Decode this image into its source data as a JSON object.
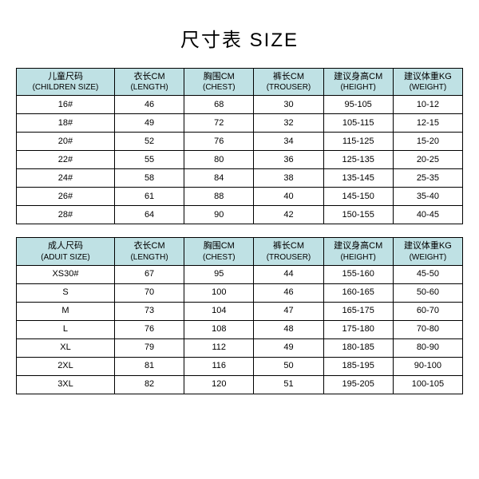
{
  "title": "尺寸表 SIZE",
  "children_table": {
    "columns": [
      {
        "cn": "儿童尺码",
        "en": "(CHILDREN SIZE)"
      },
      {
        "cn": "衣长CM",
        "en": "(LENGTH)"
      },
      {
        "cn": "胸围CM",
        "en": "(CHEST)"
      },
      {
        "cn": "裤长CM",
        "en": "(TROUSER)"
      },
      {
        "cn": "建议身高CM",
        "en": "(HEIGHT)"
      },
      {
        "cn": "建议体重KG",
        "en": "(WEIGHT)"
      }
    ],
    "rows": [
      [
        "16#",
        "46",
        "68",
        "30",
        "95-105",
        "10-12"
      ],
      [
        "18#",
        "49",
        "72",
        "32",
        "105-115",
        "12-15"
      ],
      [
        "20#",
        "52",
        "76",
        "34",
        "115-125",
        "15-20"
      ],
      [
        "22#",
        "55",
        "80",
        "36",
        "125-135",
        "20-25"
      ],
      [
        "24#",
        "58",
        "84",
        "38",
        "135-145",
        "25-35"
      ],
      [
        "26#",
        "61",
        "88",
        "40",
        "145-150",
        "35-40"
      ],
      [
        "28#",
        "64",
        "90",
        "42",
        "150-155",
        "40-45"
      ]
    ]
  },
  "adult_table": {
    "columns": [
      {
        "cn": "成人尺码",
        "en": "(ADUIT SIZE)"
      },
      {
        "cn": "衣长CM",
        "en": "(LENGTH)"
      },
      {
        "cn": "胸围CM",
        "en": "(CHEST)"
      },
      {
        "cn": "裤长CM",
        "en": "(TROUSER)"
      },
      {
        "cn": "建议身高CM",
        "en": "(HEIGHT)"
      },
      {
        "cn": "建议体重KG",
        "en": "(WEIGHT)"
      }
    ],
    "rows": [
      [
        "XS30#",
        "67",
        "95",
        "44",
        "155-160",
        "45-50"
      ],
      [
        "S",
        "70",
        "100",
        "46",
        "160-165",
        "50-60"
      ],
      [
        "M",
        "73",
        "104",
        "47",
        "165-175",
        "60-70"
      ],
      [
        "L",
        "76",
        "108",
        "48",
        "175-180",
        "70-80"
      ],
      [
        "XL",
        "79",
        "112",
        "49",
        "180-185",
        "80-90"
      ],
      [
        "2XL",
        "81",
        "116",
        "50",
        "185-195",
        "90-100"
      ],
      [
        "3XL",
        "82",
        "120",
        "51",
        "195-205",
        "100-105"
      ]
    ]
  },
  "style": {
    "header_bg": "#bfe1e4",
    "border_color": "#000000",
    "row_bg": "#ffffff",
    "text_color": "#000000",
    "title_fontsize": 24,
    "cell_fontsize": 11
  }
}
